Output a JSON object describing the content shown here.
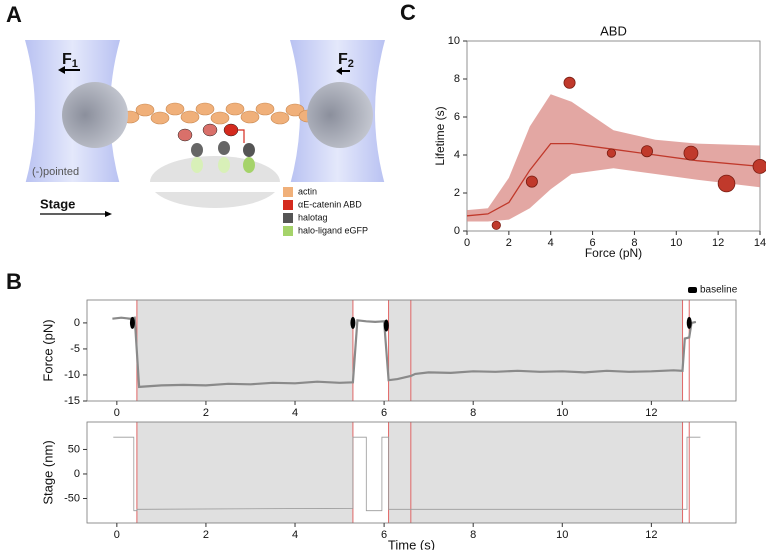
{
  "panels": {
    "a": "A",
    "b": "B",
    "c": "C"
  },
  "diagram": {
    "force_left": {
      "symbol": "F",
      "subscript": "1"
    },
    "force_right": {
      "symbol": "F",
      "subscript": "2"
    },
    "end_label": "(-)pointed",
    "stage_label": "Stage",
    "legend": [
      {
        "label": "actin",
        "color": "#f0b07a"
      },
      {
        "label": "αE-catenin ABD",
        "color": "#d42a1e"
      },
      {
        "label": "halotag",
        "color": "#555555"
      },
      {
        "label": "halo-ligand eGFP",
        "color": "#a5d36a"
      }
    ]
  },
  "chart_data": [
    {
      "type": "line",
      "ylabel": "Force (pN)",
      "color": "#8a8a8a",
      "x": [
        -0.1,
        0.1,
        0.3,
        0.4,
        0.5,
        1,
        1.5,
        2,
        2.5,
        3,
        3.5,
        4,
        4.5,
        5,
        5.3,
        5.4,
        5.6,
        5.8,
        6.0,
        6.1,
        6.3,
        6.6,
        6.7,
        7,
        7.5,
        8,
        8.5,
        9,
        9.5,
        10,
        10.5,
        11,
        11.5,
        12,
        12.5,
        12.7,
        12.75,
        12.85,
        12.9,
        13.0
      ],
      "values": [
        0.8,
        1,
        0.8,
        1,
        -12.3,
        -12,
        -11.9,
        -12,
        -11.7,
        -11.8,
        -11.5,
        -11.6,
        -11.3,
        -11.5,
        -11.4,
        0.5,
        0.3,
        0.2,
        0.3,
        -11,
        -10.8,
        -10.2,
        -9.8,
        -9.5,
        -9.6,
        -9.3,
        -9.4,
        -9.2,
        -9.4,
        -9.3,
        -9.5,
        -9.2,
        -9.4,
        -9.3,
        -9.1,
        -9.2,
        -3,
        -2.8,
        0,
        0.2
      ],
      "baseline": {
        "name": "baseline",
        "color": "#000000",
        "x": [
          0.35,
          5.3,
          6.05,
          12.85
        ],
        "values": [
          0,
          0,
          -0.5,
          0
        ]
      },
      "legend": "upper right",
      "shaded": [
        [
          0.45,
          5.3
        ],
        [
          6.1,
          12.7
        ]
      ],
      "events": [
        0.45,
        5.3,
        6.1,
        6.6,
        12.7,
        12.85
      ],
      "xlim": [
        -0.67,
        13.9
      ],
      "xticks": [
        0,
        2,
        4,
        6,
        8,
        10,
        12
      ],
      "ylim": [
        -15,
        4.4
      ],
      "yticks": [
        0,
        -5,
        -10,
        -15
      ]
    },
    {
      "type": "line",
      "xlabel": "Time (s)",
      "ylabel": "Stage (nm)",
      "color": "#9a9a9a",
      "x": [
        -0.08,
        0.38,
        0.38,
        0.45,
        0.45,
        5.3,
        5.3,
        5.6,
        5.6,
        5.95,
        5.95,
        6.1,
        6.1,
        12.8,
        12.8,
        13.1
      ],
      "values": [
        75,
        75,
        -75,
        -75,
        -72,
        -70,
        75,
        75,
        -75,
        -75,
        75,
        75,
        -72,
        -72,
        75,
        75
      ],
      "shaded": [
        [
          0.45,
          5.3
        ],
        [
          6.1,
          12.7
        ]
      ],
      "events": [
        0.45,
        5.3,
        6.1,
        6.6,
        12.7,
        12.85
      ],
      "xlim": [
        -0.67,
        13.9
      ],
      "xticks": [
        0,
        2,
        4,
        6,
        8,
        10,
        12
      ],
      "ylim": [
        -100,
        106
      ],
      "yticks": [
        50,
        0,
        -50
      ]
    },
    {
      "type": "scatter",
      "title": "ABD",
      "xlabel": "Force (pN)",
      "ylabel": "Lifetime (s)",
      "color": "#c0392b",
      "x": [
        1.4,
        3.1,
        4.9,
        6.9,
        8.6,
        10.7,
        12.4,
        14
      ],
      "values": [
        0.3,
        2.6,
        7.8,
        4.1,
        4.2,
        4.1,
        2.5,
        3.4
      ],
      "sizes": [
        3,
        4,
        4,
        3,
        4,
        5,
        6,
        5
      ],
      "fit": {
        "color": "#c0392b",
        "band_color": "#d98a84",
        "x": [
          0,
          1,
          2,
          3,
          4,
          5,
          7,
          9,
          11,
          14
        ],
        "values": [
          0.8,
          0.9,
          1.5,
          3.2,
          4.6,
          4.6,
          4.3,
          4.0,
          3.7,
          3.4
        ],
        "lower": [
          0.5,
          0.5,
          0.6,
          1.2,
          2.2,
          3.0,
          3.3,
          3.0,
          2.7,
          2.3
        ],
        "upper": [
          1.1,
          1.2,
          2.8,
          5.5,
          7.2,
          6.8,
          5.3,
          4.8,
          4.6,
          4.5
        ]
      },
      "xlim": [
        0,
        14
      ],
      "xticks": [
        0,
        2,
        4,
        6,
        8,
        10,
        12,
        14
      ],
      "ylim": [
        0,
        10
      ],
      "yticks": [
        0,
        2,
        4,
        6,
        8,
        10
      ]
    }
  ]
}
